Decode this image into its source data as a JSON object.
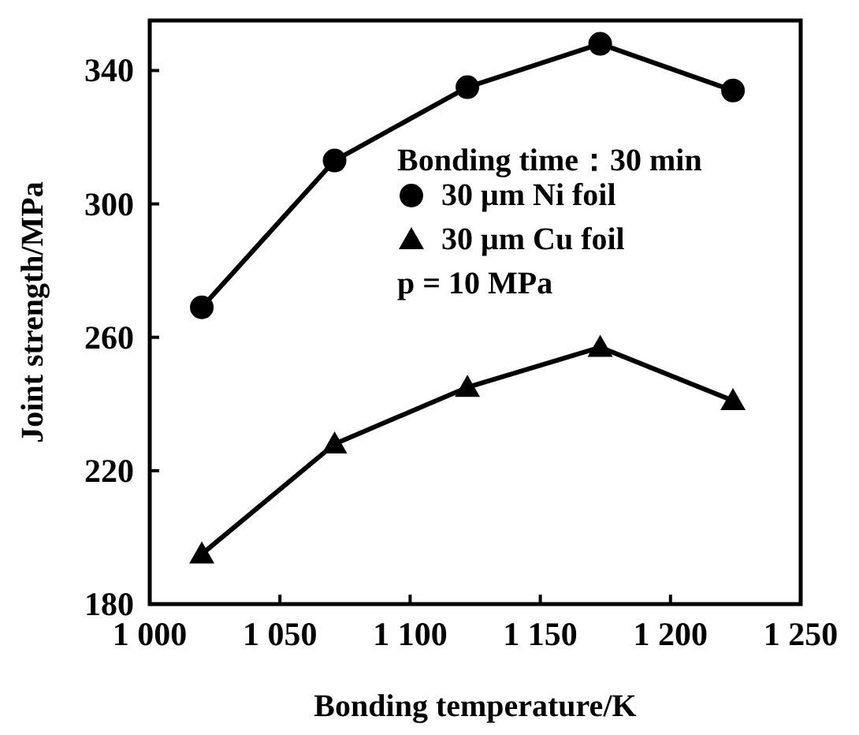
{
  "chart_data": {
    "type": "line",
    "xlabel": "Bonding temperature/K",
    "ylabel": "Joint strength/MPa",
    "legend_title": "Bonding time：30 min",
    "legend": "center",
    "grid": false,
    "line_style": "solid",
    "xlim": [
      1000,
      1250
    ],
    "xticks": [
      {
        "value": 1000,
        "label": "1 000"
      },
      {
        "value": 1050,
        "label": "1 050"
      },
      {
        "value": 1100,
        "label": "1 100"
      },
      {
        "value": 1150,
        "label": "1 150"
      },
      {
        "value": 1200,
        "label": "1 200"
      },
      {
        "value": 1250,
        "label": "1 250"
      }
    ],
    "ylim": [
      180,
      355
    ],
    "yticks": [
      180,
      220,
      260,
      300,
      340
    ],
    "x": [
      1020,
      1071,
      1122,
      1173,
      1224
    ],
    "series": [
      {
        "name": "30 μm Ni foil",
        "color": "#000000",
        "marker": "circle",
        "values": [
          269,
          313,
          335,
          348,
          334
        ]
      },
      {
        "name": "30 μm Cu foil",
        "color": "#000000",
        "marker": "triangle",
        "values": [
          195,
          228,
          245,
          257,
          241
        ]
      }
    ],
    "annotations": [
      "p = 10 MPa"
    ]
  }
}
